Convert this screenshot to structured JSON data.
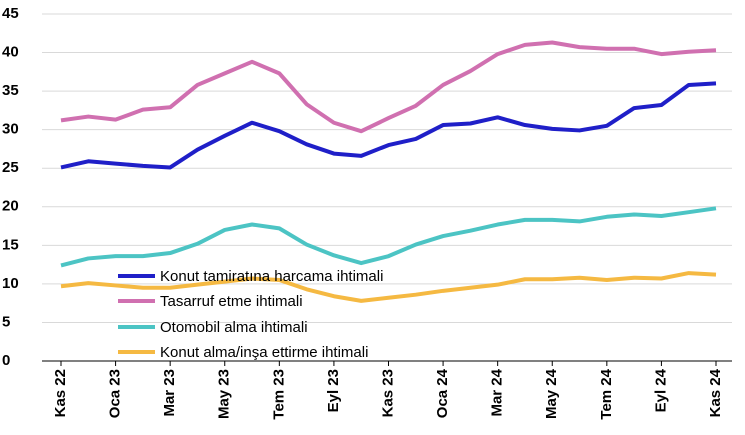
{
  "chart_data": {
    "type": "line",
    "categories": [
      "Kas 22",
      null,
      "Oca 23",
      null,
      "Mar 23",
      null,
      "May 23",
      null,
      "Tem 23",
      null,
      "Eyl 23",
      null,
      "Kas 23",
      null,
      "Oca 24",
      null,
      "Mar 24",
      null,
      "May 24",
      null,
      "Tem 24",
      null,
      "Eyl 24",
      null,
      "Kas 24"
    ],
    "series": [
      {
        "name": "Konut tamiratına harcama ihtimali",
        "color": "#1f1fc8",
        "values": [
          25.1,
          25.9,
          25.6,
          25.3,
          25.1,
          27.4,
          29.2,
          30.9,
          29.8,
          28.1,
          26.9,
          26.6,
          28.0,
          28.8,
          30.6,
          30.8,
          31.6,
          30.6,
          30.1,
          29.9,
          30.5,
          32.8,
          33.2,
          35.8,
          36.0
        ]
      },
      {
        "name": "Tasarruf etme ihtimali",
        "color": "#d070b0",
        "values": [
          31.2,
          31.7,
          31.3,
          32.6,
          32.9,
          35.8,
          37.3,
          38.8,
          37.3,
          33.3,
          30.9,
          29.8,
          31.5,
          33.1,
          35.8,
          37.6,
          39.8,
          41.0,
          41.3,
          40.7,
          40.5,
          40.5,
          39.8,
          40.1,
          40.3
        ]
      },
      {
        "name": "Otomobil alma ihtimali",
        "color": "#4cc4c4",
        "values": [
          12.4,
          13.3,
          13.6,
          13.6,
          14.0,
          15.2,
          17.0,
          17.7,
          17.2,
          15.1,
          13.7,
          12.7,
          13.6,
          15.1,
          16.2,
          16.9,
          17.7,
          18.3,
          18.3,
          18.1,
          18.7,
          19.0,
          18.8,
          19.3,
          19.8
        ]
      },
      {
        "name": "Konut alma/inşa ettirme ihtimali",
        "color": "#f5b942",
        "values": [
          9.7,
          10.1,
          9.8,
          9.5,
          9.5,
          9.9,
          10.3,
          10.7,
          10.5,
          9.3,
          8.4,
          7.8,
          8.2,
          8.6,
          9.1,
          9.5,
          9.9,
          10.6,
          10.6,
          10.8,
          10.5,
          10.8,
          10.7,
          11.4,
          11.2
        ]
      }
    ],
    "ylim": [
      0,
      45
    ],
    "yticks": [
      0,
      5,
      10,
      15,
      20,
      25,
      30,
      35,
      40,
      45
    ],
    "grid": true
  }
}
